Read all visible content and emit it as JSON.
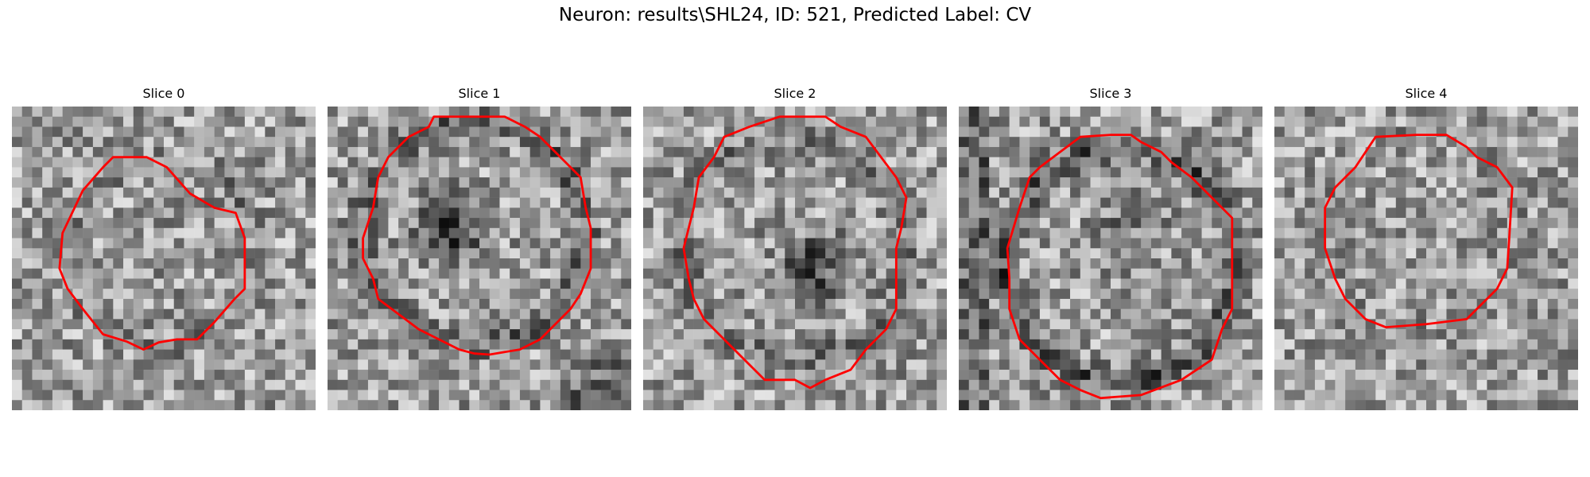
{
  "figure": {
    "title": "Neuron: results\\SHL24, ID: 521, Predicted Label: CV",
    "contour_color": "#ff0000",
    "colormap": "grayscale"
  },
  "slices": [
    {
      "title": "Slice 0"
    },
    {
      "title": "Slice 1"
    },
    {
      "title": "Slice 2"
    },
    {
      "title": "Slice 3"
    },
    {
      "title": "Slice 4"
    }
  ]
}
